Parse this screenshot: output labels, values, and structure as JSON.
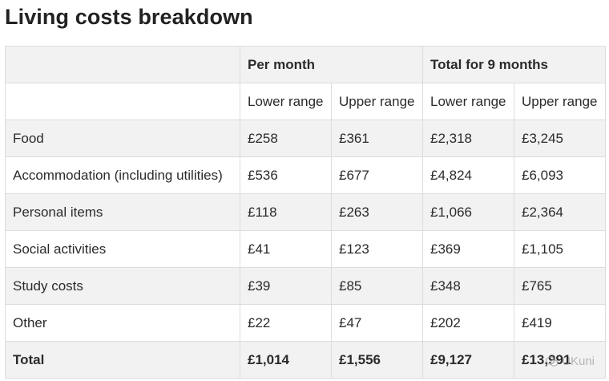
{
  "title": "Living costs breakdown",
  "table": {
    "group_headers": [
      "",
      "Per month",
      "Total for 9 months"
    ],
    "sub_headers": [
      "",
      "Lower range",
      "Upper range",
      "Lower range",
      "Upper range"
    ],
    "rows": [
      [
        "Food",
        "£258",
        "£361",
        "£2,318",
        "£3,245"
      ],
      [
        "Accommodation (including utilities)",
        "£536",
        "£677",
        "£4,824",
        "£6,093"
      ],
      [
        "Personal items",
        "£118",
        "£263",
        "£1,066",
        "£2,364"
      ],
      [
        "Social activities",
        "£41",
        "£123",
        "£369",
        "£1,105"
      ],
      [
        "Study costs",
        "£39",
        "£85",
        "£348",
        "£765"
      ],
      [
        "Other",
        "£22",
        "£47",
        "£202",
        "£419"
      ]
    ],
    "total": [
      "Total",
      "£1,014",
      "£1,556",
      "£9,127",
      "£13,991"
    ]
  },
  "watermark": {
    "text": "UKuni",
    "icon": "wechat-icon"
  }
}
